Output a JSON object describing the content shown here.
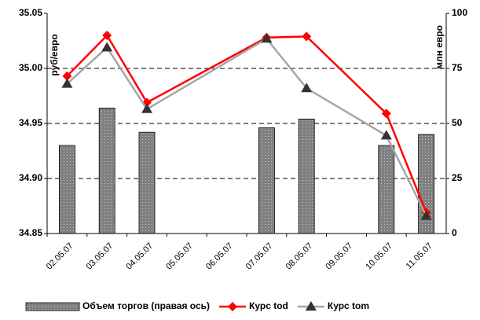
{
  "chart_data": {
    "type": "bar-line",
    "y_label": "руб/евро",
    "y2_label": "млн евро",
    "categories": [
      "02.05.07",
      "03.05.07",
      "04.05.07",
      "05.05.07",
      "06.05.07",
      "07.05.07",
      "08.05.07",
      "09.05.07",
      "10.05.07",
      "11.05.07"
    ],
    "ylim": [
      34.85,
      35.05
    ],
    "yticks": [
      {
        "value": 34.85,
        "label": "34.85"
      },
      {
        "value": 34.9,
        "label": "34.90"
      },
      {
        "value": 34.95,
        "label": "34.95"
      },
      {
        "value": 35.0,
        "label": "35.00"
      },
      {
        "value": 35.05,
        "label": "35.05"
      }
    ],
    "y2lim": [
      0,
      100
    ],
    "y2ticks": [
      0,
      25,
      50,
      75,
      100
    ],
    "grid": true,
    "series": [
      {
        "name": "Объем торгов (правая ось)",
        "type": "bar",
        "axis": "y2",
        "color": "#808080",
        "values": [
          40,
          57,
          46,
          null,
          null,
          48,
          52,
          null,
          40,
          45
        ]
      },
      {
        "name": "Курс tod",
        "type": "line",
        "marker": "diamond",
        "color": "#ff0000",
        "x": [
          "02.05.07",
          "03.05.07",
          "04.05.07",
          "07.05.07",
          "08.05.07",
          "10.05.07",
          "11.05.07"
        ],
        "values": [
          34.993,
          35.03,
          34.969,
          35.028,
          35.029,
          34.959,
          34.869
        ]
      },
      {
        "name": "Курс tom",
        "type": "line",
        "marker": "triangle",
        "color": "#a6a6a6",
        "marker_color": "#333333",
        "x": [
          "02.05.07",
          "03.05.07",
          "04.05.07",
          "07.05.07",
          "08.05.07",
          "10.05.07",
          "11.05.07"
        ],
        "values": [
          34.986,
          35.019,
          34.963,
          35.027,
          34.982,
          34.939,
          34.866
        ]
      }
    ],
    "legend": "bottom"
  }
}
